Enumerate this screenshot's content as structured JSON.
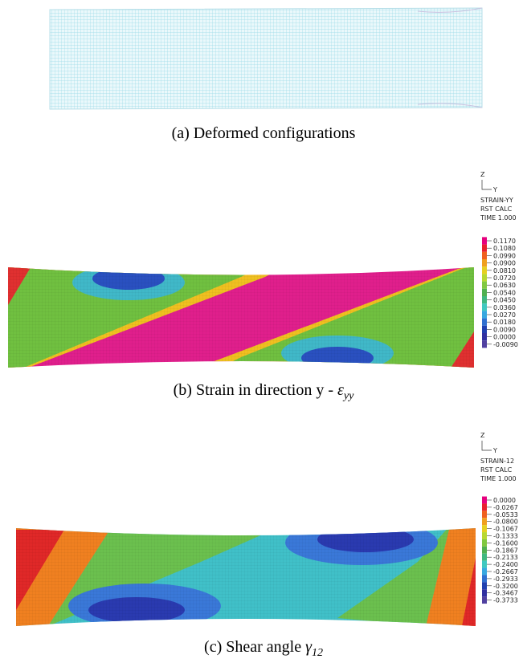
{
  "panels": [
    {
      "caption": {
        "text": "(a) Deformed configurations"
      }
    },
    {
      "caption": {
        "text": "(b) Strain in direction y - ",
        "symbol": "ε",
        "subscript": "yy"
      },
      "legend": {
        "axis_z": "Z",
        "axis_y": "Y",
        "header": [
          "STRAIN-YY",
          "RST CALC",
          "TIME 1.000"
        ],
        "labels": [
          "0.1170",
          "0.1080",
          "0.0990",
          "0.0900",
          "0.0810",
          "0.0720",
          "0.0630",
          "0.0540",
          "0.0450",
          "0.0360",
          "0.0270",
          "0.0180",
          "0.0090",
          "0.0000",
          "-0.0090"
        ]
      }
    },
    {
      "caption": {
        "text": "(c) Shear angle ",
        "symbol": "γ",
        "subscript": "12"
      },
      "legend": {
        "axis_z": "Z",
        "axis_y": "Y",
        "header": [
          "STRAIN-12",
          "RST CALC",
          "TIME 1.000"
        ],
        "labels": [
          "0.0000",
          "-0.0267",
          "-0.0533",
          "-0.0800",
          "-0.1067",
          "-0.1333",
          "-0.1600",
          "-0.1867",
          "-0.2133",
          "-0.2400",
          "-0.2667",
          "-0.2933",
          "-0.3200",
          "-0.3467",
          "-0.3733"
        ]
      }
    }
  ]
}
